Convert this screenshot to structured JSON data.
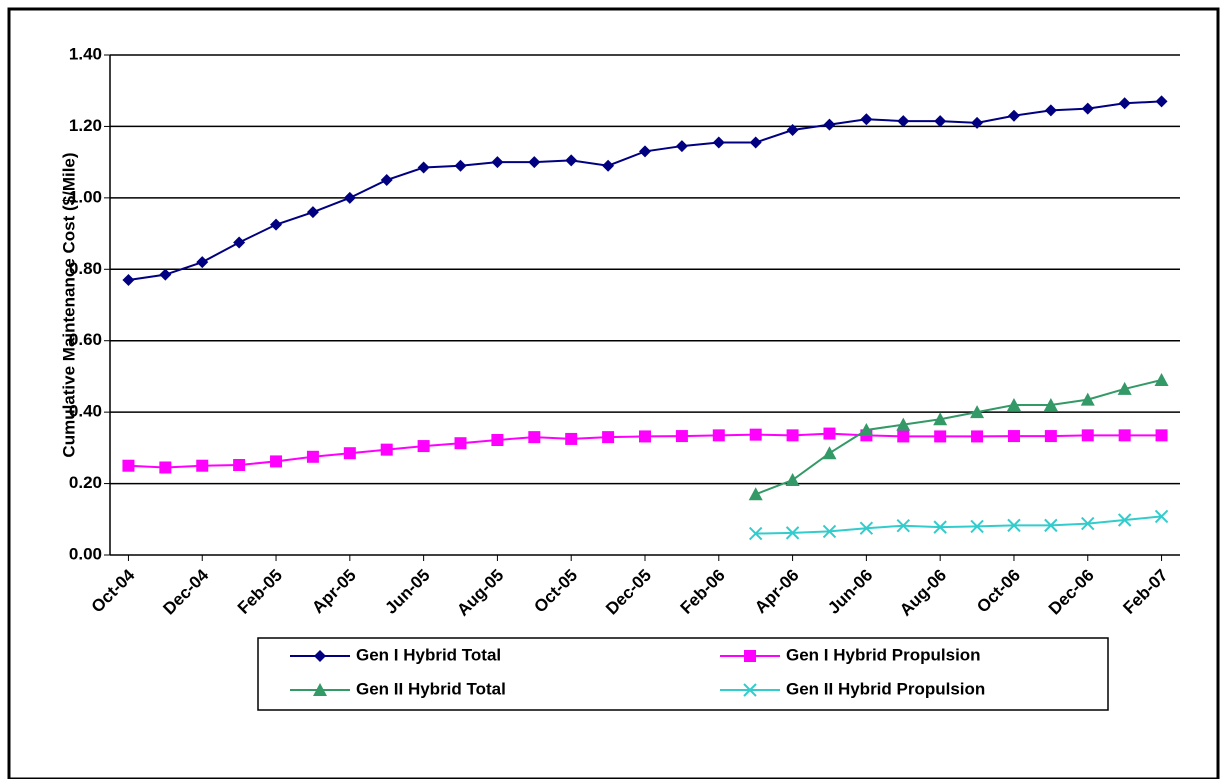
{
  "chart_data": {
    "type": "line",
    "y_label": "Cumulative Maintenance Cost ($/Mile)",
    "categories": [
      "Oct-04",
      null,
      "Dec-04",
      null,
      "Feb-05",
      null,
      "Apr-05",
      null,
      "Jun-05",
      null,
      "Aug-05",
      null,
      "Oct-05",
      null,
      "Dec-05",
      null,
      "Feb-06",
      null,
      "Apr-06",
      null,
      "Jun-06",
      null,
      "Aug-06",
      null,
      "Oct-06",
      null,
      "Dec-06",
      null,
      "Feb-07"
    ],
    "ylim": [
      0,
      1.4
    ],
    "yticks": [
      {
        "value": 0,
        "label": "0.00"
      },
      {
        "value": 0.2,
        "label": "0.20"
      },
      {
        "value": 0.4,
        "label": "0.40"
      },
      {
        "value": 0.6,
        "label": "0.60"
      },
      {
        "value": 0.8,
        "label": "0.80"
      },
      {
        "value": 1.0,
        "label": "1.00"
      },
      {
        "value": 1.2,
        "label": "1.20"
      },
      {
        "value": 1.4,
        "label": "1.40"
      }
    ],
    "grid": true,
    "legend": "bottom",
    "series": [
      {
        "name": "Gen I Hybrid Total",
        "color": "#000080",
        "marker": "diamond",
        "values": [
          0.77,
          0.785,
          0.82,
          0.875,
          0.925,
          0.96,
          1.0,
          1.05,
          1.085,
          1.09,
          1.1,
          1.1,
          1.105,
          1.09,
          1.13,
          1.145,
          1.155,
          1.155,
          1.19,
          1.205,
          1.22,
          1.215,
          1.215,
          1.21,
          1.23,
          1.245,
          1.25,
          1.265,
          1.27
        ]
      },
      {
        "name": "Gen I Hybrid Propulsion",
        "color": "#ff00ff",
        "marker": "square",
        "values": [
          0.25,
          0.245,
          0.25,
          0.252,
          0.262,
          0.275,
          0.285,
          0.295,
          0.305,
          0.313,
          0.322,
          0.33,
          0.325,
          0.33,
          0.332,
          0.333,
          0.335,
          0.337,
          0.335,
          0.34,
          0.335,
          0.332,
          0.332,
          0.332,
          0.333,
          0.333,
          0.335,
          0.335,
          0.335
        ]
      },
      {
        "name": "Gen II Hybrid Total",
        "color": "#339966",
        "marker": "triangle",
        "values": [
          null,
          null,
          null,
          null,
          null,
          null,
          null,
          null,
          null,
          null,
          null,
          null,
          null,
          null,
          null,
          null,
          null,
          0.17,
          0.21,
          0.285,
          0.35,
          0.365,
          0.38,
          0.4,
          0.42,
          0.42,
          0.435,
          0.465,
          0.49
        ]
      },
      {
        "name": "Gen II Hybrid Propulsion",
        "color": "#33cccc",
        "marker": "x",
        "values": [
          null,
          null,
          null,
          null,
          null,
          null,
          null,
          null,
          null,
          null,
          null,
          null,
          null,
          null,
          null,
          null,
          null,
          0.06,
          0.062,
          0.066,
          0.075,
          0.082,
          0.078,
          0.08,
          0.083,
          0.083,
          0.088,
          0.098,
          0.108
        ]
      }
    ]
  }
}
